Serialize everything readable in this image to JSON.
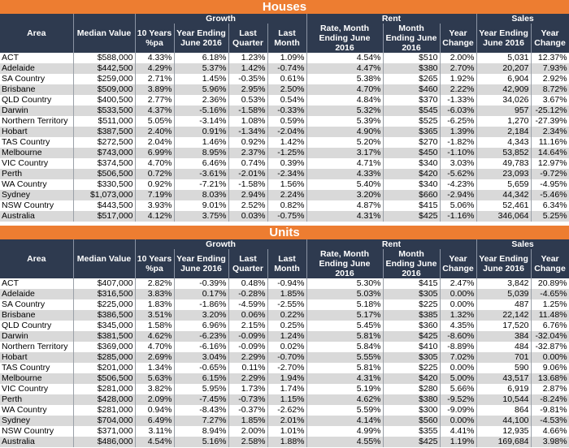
{
  "colors": {
    "banner": "#ed7d31",
    "header": "#2e3a4f",
    "row_alt": "#d9d9d9",
    "row_base": "#ffffff"
  },
  "headers": {
    "groups": {
      "growth": "Growth",
      "rent": "Rent",
      "sales": "Sales"
    },
    "area": "Area",
    "median_value": "Median Value",
    "ten_years": "10 Years %pa",
    "year_ending": "Year Ending June 2016",
    "last_quarter": "Last Quarter",
    "last_month": "Last Month",
    "rate_month_ending": "Rate, Month Ending June 2016",
    "month_ending": "Month Ending June 2016",
    "year_change": "Year Change",
    "sales_year_ending": "Year Ending June 2016",
    "sales_year_change": "Year Change"
  },
  "houses": {
    "title": "Houses",
    "rows": [
      [
        "ACT",
        "$588,000",
        "4.33%",
        "6.18%",
        "1.23%",
        "1.09%",
        "4.54%",
        "$510",
        "2.00%",
        "5,031",
        "12.37%"
      ],
      [
        "Adelaide",
        "$442,500",
        "4.29%",
        "5.37%",
        "1.42%",
        "-0.74%",
        "4.47%",
        "$380",
        "2.70%",
        "20,207",
        "7.93%"
      ],
      [
        "SA Country",
        "$259,000",
        "2.71%",
        "1.45%",
        "-0.35%",
        "0.61%",
        "5.38%",
        "$265",
        "1.92%",
        "6,904",
        "2.92%"
      ],
      [
        "Brisbane",
        "$509,000",
        "3.89%",
        "5.96%",
        "2.95%",
        "2.50%",
        "4.70%",
        "$460",
        "2.22%",
        "42,909",
        "8.72%"
      ],
      [
        "QLD Country",
        "$400,500",
        "2.77%",
        "2.36%",
        "0.53%",
        "0.54%",
        "4.84%",
        "$370",
        "-1.33%",
        "34,026",
        "3.67%"
      ],
      [
        "Darwin",
        "$533,500",
        "4.37%",
        "-5.16%",
        "-1.58%",
        "-0.33%",
        "5.32%",
        "$545",
        "-6.03%",
        "957",
        "-25.12%"
      ],
      [
        "Northern Territory",
        "$511,000",
        "5.05%",
        "-3.14%",
        "1.08%",
        "0.59%",
        "5.39%",
        "$525",
        "-6.25%",
        "1,270",
        "-27.39%"
      ],
      [
        "Hobart",
        "$387,500",
        "2.40%",
        "0.91%",
        "-1.34%",
        "-2.04%",
        "4.90%",
        "$365",
        "1.39%",
        "2,184",
        "2.34%"
      ],
      [
        "TAS Country",
        "$272,500",
        "2.04%",
        "1.46%",
        "0.92%",
        "1.42%",
        "5.20%",
        "$270",
        "-1.82%",
        "4,343",
        "11.16%"
      ],
      [
        "Melbourne",
        "$743,000",
        "6.99%",
        "8.95%",
        "2.37%",
        "-1.25%",
        "3.17%",
        "$450",
        "-1.10%",
        "53,852",
        "14.64%"
      ],
      [
        "VIC Country",
        "$374,500",
        "4.70%",
        "6.46%",
        "0.74%",
        "0.39%",
        "4.71%",
        "$340",
        "3.03%",
        "49,783",
        "12.97%"
      ],
      [
        "Perth",
        "$506,500",
        "0.72%",
        "-3.61%",
        "-2.01%",
        "-2.34%",
        "4.33%",
        "$420",
        "-5.62%",
        "23,093",
        "-9.72%"
      ],
      [
        "WA Country",
        "$330,500",
        "0.92%",
        "-7.21%",
        "-1.58%",
        "1.56%",
        "5.40%",
        "$340",
        "-4.23%",
        "5,659",
        "-4.95%"
      ],
      [
        "Sydney",
        "$1,073,000",
        "7.19%",
        "8.03%",
        "2.94%",
        "2.24%",
        "3.20%",
        "$660",
        "-2.94%",
        "44,342",
        "-5.46%"
      ],
      [
        "NSW Country",
        "$443,500",
        "3.93%",
        "9.01%",
        "2.52%",
        "0.82%",
        "4.87%",
        "$415",
        "5.06%",
        "52,461",
        "6.34%"
      ],
      [
        "Australia",
        "$517,000",
        "4.12%",
        "3.75%",
        "0.03%",
        "-0.75%",
        "4.31%",
        "$425",
        "-1.16%",
        "346,064",
        "5.25%"
      ]
    ]
  },
  "units": {
    "title": "Units",
    "rows": [
      [
        "ACT",
        "$407,000",
        "2.82%",
        "-0.39%",
        "0.48%",
        "-0.94%",
        "5.30%",
        "$415",
        "2.47%",
        "3,842",
        "20.89%"
      ],
      [
        "Adelaide",
        "$316,500",
        "3.83%",
        "0.17%",
        "-0.28%",
        "1.85%",
        "5.03%",
        "$305",
        "0.00%",
        "5,039",
        "-4.65%"
      ],
      [
        "SA Country",
        "$225,000",
        "1.83%",
        "-1.86%",
        "-4.59%",
        "-2.55%",
        "5.18%",
        "$225",
        "0.00%",
        "487",
        "1.25%"
      ],
      [
        "Brisbane",
        "$386,500",
        "3.51%",
        "3.20%",
        "0.06%",
        "0.22%",
        "5.17%",
        "$385",
        "1.32%",
        "22,142",
        "11.48%"
      ],
      [
        "QLD Country",
        "$345,000",
        "1.58%",
        "6.96%",
        "2.15%",
        "0.25%",
        "5.45%",
        "$360",
        "4.35%",
        "17,520",
        "6.76%"
      ],
      [
        "Darwin",
        "$381,500",
        "4.62%",
        "-6.23%",
        "-0.09%",
        "1.24%",
        "5.81%",
        "$425",
        "-8.60%",
        "384",
        "-32.04%"
      ],
      [
        "Northern Territory",
        "$369,000",
        "4.70%",
        "-6.16%",
        "-0.09%",
        "0.02%",
        "5.84%",
        "$410",
        "-8.89%",
        "484",
        "-32.87%"
      ],
      [
        "Hobart",
        "$285,000",
        "2.69%",
        "3.04%",
        "2.29%",
        "-0.70%",
        "5.55%",
        "$305",
        "7.02%",
        "701",
        "0.00%"
      ],
      [
        "TAS Country",
        "$201,000",
        "1.34%",
        "-0.65%",
        "0.11%",
        "-2.70%",
        "5.81%",
        "$225",
        "0.00%",
        "590",
        "9.06%"
      ],
      [
        "Melbourne",
        "$506,500",
        "5.63%",
        "6.15%",
        "2.29%",
        "1.94%",
        "4.31%",
        "$420",
        "5.00%",
        "43,517",
        "13.68%"
      ],
      [
        "VIC Country",
        "$281,000",
        "3.82%",
        "5.95%",
        "1.73%",
        "1.74%",
        "5.19%",
        "$280",
        "5.66%",
        "6,919",
        "2.87%"
      ],
      [
        "Perth",
        "$428,000",
        "2.09%",
        "-7.45%",
        "-0.73%",
        "1.15%",
        "4.62%",
        "$380",
        "-9.52%",
        "10,544",
        "-8.24%"
      ],
      [
        "WA Country",
        "$281,000",
        "0.94%",
        "-8.43%",
        "-0.37%",
        "-2.62%",
        "5.59%",
        "$300",
        "-9.09%",
        "864",
        "-9.81%"
      ],
      [
        "Sydney",
        "$704,000",
        "6.49%",
        "7.27%",
        "1.85%",
        "2.01%",
        "4.14%",
        "$560",
        "0.00%",
        "44,100",
        "-4.53%"
      ],
      [
        "NSW Country",
        "$371,000",
        "3.11%",
        "8.94%",
        "2.00%",
        "1.01%",
        "4.99%",
        "$355",
        "4.41%",
        "12,935",
        "4.66%"
      ],
      [
        "Australia",
        "$486,000",
        "4.54%",
        "5.16%",
        "2.58%",
        "1.88%",
        "4.55%",
        "$425",
        "1.19%",
        "169,684",
        "3.98%"
      ]
    ]
  }
}
